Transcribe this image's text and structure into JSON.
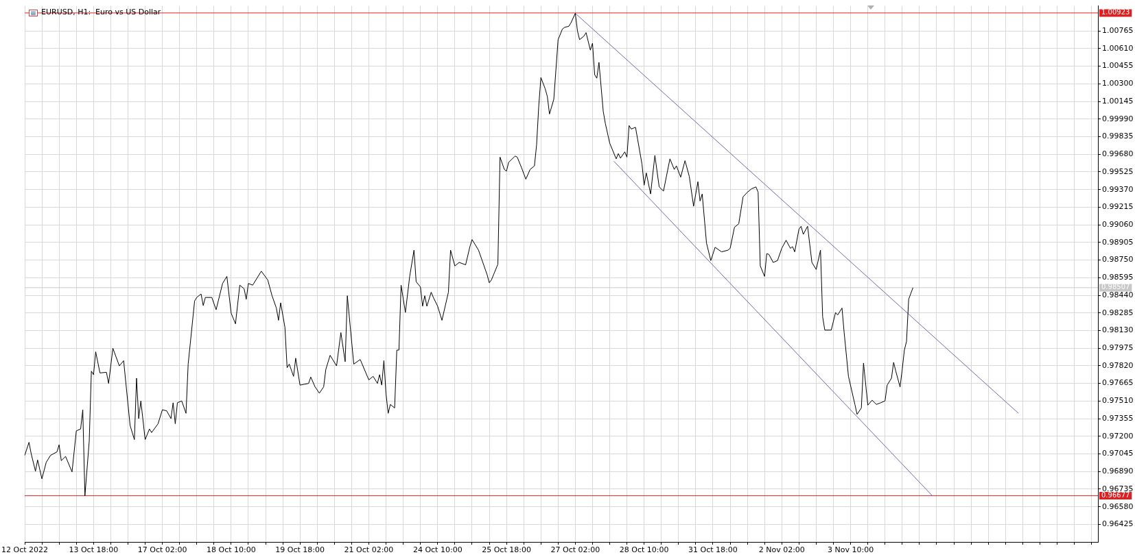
{
  "chart_data": {
    "type": "line",
    "title": "EURUSD, H1:  Euro vs US Dollar",
    "marker": "none",
    "grid": true,
    "ylim": [
      0.96271,
      1.00985
    ],
    "categories": [
      "12 Oct 2022",
      null,
      null,
      null,
      null,
      null,
      null,
      null,
      null,
      null,
      null,
      null,
      null,
      null,
      null,
      null,
      null,
      null,
      null,
      null,
      null,
      null,
      null,
      null,
      null,
      null,
      null,
      null,
      null,
      null,
      null,
      null,
      "13 Oct 18:00",
      null,
      null,
      null,
      null,
      null,
      null,
      null,
      null,
      null,
      null,
      null,
      null,
      null,
      null,
      null,
      null,
      null,
      null,
      null,
      null,
      null,
      null,
      null,
      null,
      null,
      null,
      null,
      null,
      null,
      null,
      null,
      "17 Oct 02:00",
      null,
      null,
      null,
      null,
      null,
      null,
      null,
      null,
      null,
      null,
      null,
      null,
      null,
      null,
      null,
      null,
      null,
      null,
      null,
      null,
      null,
      null,
      null,
      null,
      null,
      null,
      null,
      null,
      null,
      null,
      null,
      "18 Oct 10:00",
      null,
      null,
      null,
      null,
      null,
      null,
      null,
      null,
      null,
      null,
      null,
      null,
      null,
      null,
      null,
      null,
      null,
      null,
      null,
      null,
      null,
      null,
      null,
      null,
      null,
      null,
      null,
      null,
      null,
      null,
      null,
      "19 Oct 18:00",
      null,
      null,
      null,
      null,
      null,
      null,
      null,
      null,
      null,
      null,
      null,
      null,
      null,
      null,
      null,
      null,
      null,
      null,
      null,
      null,
      null,
      null,
      null,
      null,
      null,
      null,
      null,
      null,
      null,
      null,
      null,
      "21 Oct 02:00",
      null,
      null,
      null,
      null,
      null,
      null,
      null,
      null,
      null,
      null,
      null,
      null,
      null,
      null,
      null,
      null,
      null,
      null,
      null,
      null,
      null,
      null,
      null,
      null,
      null,
      null,
      null,
      null,
      null,
      null,
      null,
      "24 Oct 10:00",
      null,
      null,
      null,
      null,
      null,
      null,
      null,
      null,
      null,
      null,
      null,
      null,
      null,
      null,
      null,
      null,
      null,
      null,
      null,
      null,
      null,
      null,
      null,
      null,
      null,
      null,
      null,
      null,
      null,
      null,
      null,
      "25 Oct 18:00",
      null,
      null,
      null,
      null,
      null,
      null,
      null,
      null,
      null,
      null,
      null,
      null,
      null,
      null,
      null,
      null,
      null,
      null,
      null,
      null,
      null,
      null,
      null,
      null,
      null,
      null,
      null,
      null,
      null,
      null,
      null,
      "27 Oct 02:00",
      null,
      null,
      null,
      null,
      null,
      null,
      null,
      null,
      null,
      null,
      null,
      null,
      null,
      null,
      null,
      null,
      null,
      null,
      null,
      null,
      null,
      null,
      null,
      null,
      null,
      null,
      null,
      null,
      null,
      null,
      null,
      "28 Oct 10:00",
      null,
      null,
      null,
      null,
      null,
      null,
      null,
      null,
      null,
      null,
      null,
      null,
      null,
      null,
      null,
      null,
      null,
      null,
      null,
      null,
      null,
      null,
      null,
      null,
      null,
      null,
      null,
      null,
      null,
      null,
      null,
      "31 Oct 18:00",
      null,
      null,
      null,
      null,
      null,
      null,
      null,
      null,
      null,
      null,
      null,
      null,
      null,
      null,
      null,
      null,
      null,
      null,
      null,
      null,
      null,
      null,
      null,
      null,
      null,
      null,
      null,
      null,
      null,
      null,
      null,
      "2 Nov 02:00",
      null,
      null,
      null,
      null,
      null,
      null,
      null,
      null,
      null,
      null,
      null,
      null,
      null,
      null,
      null,
      null,
      null,
      null,
      null,
      null,
      null,
      null,
      null,
      null,
      null,
      null,
      null,
      null,
      null,
      null,
      null,
      "3 Nov 10:00",
      null,
      null,
      null,
      null,
      null,
      null,
      null,
      null,
      null,
      null,
      null,
      null,
      null,
      null,
      null,
      null,
      null,
      null,
      null,
      null,
      null,
      null,
      null,
      null,
      null,
      null,
      null,
      null,
      null,
      null,
      null,
      null,
      null,
      null,
      null,
      null,
      null,
      null,
      null,
      null,
      null,
      null,
      null,
      null,
      null,
      null,
      null,
      null,
      null,
      null,
      null,
      null,
      null,
      null,
      null,
      null,
      null,
      null,
      null,
      null,
      null,
      null,
      null,
      null,
      null,
      null,
      null,
      null,
      null,
      null,
      null,
      null,
      null,
      null,
      null,
      null,
      null,
      null,
      null,
      null,
      null,
      null,
      null,
      null,
      null,
      null,
      null,
      null,
      null,
      null,
      null,
      null,
      null,
      null,
      null,
      null,
      null,
      null,
      null,
      null,
      null,
      null,
      null,
      null,
      null,
      null,
      null,
      null,
      null,
      null,
      null,
      null,
      null,
      null,
      null
    ],
    "yticks": [
      {
        "value": 0.96425,
        "label": "0.96425"
      },
      {
        "value": 0.9658,
        "label": "0.96580"
      },
      {
        "value": 0.96735,
        "label": "0.96735"
      },
      {
        "value": 0.9689,
        "label": "0.96890"
      },
      {
        "value": 0.97045,
        "label": "0.97045"
      },
      {
        "value": 0.972,
        "label": "0.97200"
      },
      {
        "value": 0.97355,
        "label": "0.97355"
      },
      {
        "value": 0.9751,
        "label": "0.97510"
      },
      {
        "value": 0.97665,
        "label": "0.97665"
      },
      {
        "value": 0.9782,
        "label": "0.97820"
      },
      {
        "value": 0.97975,
        "label": "0.97975"
      },
      {
        "value": 0.9813,
        "label": "0.98130"
      },
      {
        "value": 0.98285,
        "label": "0.98285"
      },
      {
        "value": 0.9844,
        "label": "0.98440"
      },
      {
        "value": 0.98595,
        "label": "0.98595"
      },
      {
        "value": 0.9875,
        "label": "0.98750"
      },
      {
        "value": 0.98905,
        "label": "0.98905"
      },
      {
        "value": 0.9906,
        "label": "0.99060"
      },
      {
        "value": 0.99215,
        "label": "0.99215"
      },
      {
        "value": 0.9937,
        "label": "0.99370"
      },
      {
        "value": 0.99525,
        "label": "0.99525"
      },
      {
        "value": 0.9968,
        "label": "0.99680"
      },
      {
        "value": 0.99835,
        "label": "0.99835"
      },
      {
        "value": 0.9999,
        "label": "0.99990"
      },
      {
        "value": 1.00145,
        "label": "1.00145"
      },
      {
        "value": 1.003,
        "label": "1.00300"
      },
      {
        "value": 1.00455,
        "label": "1.00455"
      },
      {
        "value": 1.0061,
        "label": "1.00610"
      },
      {
        "value": 1.00765,
        "label": "1.00765"
      }
    ],
    "ref_lines": [
      {
        "axis": "y",
        "value": 1.00923,
        "label": "1.00923",
        "color": "#e02020"
      },
      {
        "axis": "y",
        "value": 0.96677,
        "label": "0.96677",
        "color": "#e02020"
      },
      {
        "axis": "y",
        "value": 0.98507,
        "label": "0.98507",
        "color": "#c8c8c8"
      }
    ],
    "series": [
      {
        "color": "#000000",
        "values": [
          0.97032,
          null,
          0.97147,
          0.97048,
          null,
          0.96893,
          0.96992,
          null,
          0.96826,
          null,
          0.96971,
          null,
          0.97032,
          null,
          null,
          0.97063,
          0.97125,
          0.96986,
          null,
          0.97023,
          null,
          null,
          0.96887,
          null,
          0.97248,
          null,
          0.97264,
          0.97433,
          0.96677,
          null,
          0.97156,
          0.97773,
          0.97742,
          0.97943,
          null,
          0.97757,
          null,
          null,
          0.97763,
          0.97665,
          null,
          0.97974,
          null,
          null,
          0.97819,
          null,
          0.97865,
          null,
          null,
          0.97295,
          null,
          0.97171,
          0.97711,
          0.97356,
          0.97511,
          null,
          0.97171,
          null,
          0.97264,
          0.97233,
          null,
          null,
          0.9731,
          null,
          0.97433,
          null,
          0.97424,
          null,
          0.97356,
          0.97495,
          0.9731,
          0.97495,
          null,
          0.97511,
          null,
          0.97402,
          0.97835,
          null,
          null,
          0.9839,
          0.98421,
          null,
          0.98452,
          0.9835,
          0.98421,
          null,
          null,
          0.98421,
          null,
          0.98313,
          null,
          null,
          0.98544,
          null,
          0.98606,
          null,
          0.98282,
          null,
          0.98189,
          null,
          0.98529,
          null,
          0.98498,
          0.98405,
          0.98544,
          null,
          0.98529,
          null,
          null,
          null,
          0.98652,
          null,
          null,
          0.98575,
          null,
          0.98436,
          null,
          0.98328,
          0.9822,
          0.98374,
          null,
          0.98158,
          0.97803,
          0.97835,
          null,
          0.97727,
          0.97887,
          null,
          0.9765,
          null,
          null,
          null,
          0.97665,
          0.97721,
          null,
          0.97635,
          null,
          0.97579,
          null,
          0.97635,
          0.97788,
          null,
          0.97912,
          null,
          null,
          0.97819,
          null,
          0.98112,
          null,
          0.97856,
          0.98436,
          null,
          null,
          0.97835,
          null,
          null,
          0.97875,
          null,
          null,
          null,
          0.97696,
          null,
          0.97727,
          null,
          0.97665,
          0.97742,
          0.9765,
          0.97865,
          0.97572,
          0.97402,
          0.9748,
          null,
          0.97449,
          0.97958,
          0.97958,
          0.98529,
          null,
          0.98289,
          null,
          0.98606,
          null,
          0.98837,
          0.98559,
          null,
          0.98513,
          0.98344,
          0.98436,
          0.98344,
          null,
          0.98467,
          0.98421,
          null,
          0.98344,
          null,
          0.9822,
          null,
          null,
          0.98467,
          0.98837,
          null,
          0.98698,
          null,
          0.98729,
          null,
          null,
          0.98708,
          null,
          0.98868,
          0.9893,
          null,
          null,
          0.98837,
          null,
          null,
          null,
          0.98621,
          0.9855,
          0.98575,
          0.98621,
          null,
          0.98714,
          0.99655,
          null,
          0.99547,
          0.99532,
          0.99609,
          null,
          null,
          0.99664,
          0.99655,
          null,
          0.99562,
          null,
          0.99461,
          null,
          0.99547,
          null,
          0.99578,
          0.99763,
          1.00102,
          1.00355,
          null,
          1.00256,
          1.00188,
          1.00034,
          null,
          1.00163,
          null,
          1.00688,
          null,
          1.00781,
          1.00796,
          null,
          1.00806,
          1.00837,
          null,
          1.0092,
          1.00765,
          1.00688,
          null,
          1.00719,
          1.0075,
          null,
          1.00596,
          1.00657,
          1.0038,
          1.00349,
          1.00488,
          null,
          1.00056,
          0.99948,
          null,
          0.99778,
          null,
          null,
          0.9964,
          0.99686,
          0.99646,
          null,
          0.99701,
          0.99655,
          0.99933,
          0.99902,
          null,
          0.99917,
          0.99809,
          null,
          0.99593,
          0.99408,
          0.99516,
          null,
          0.99331,
          null,
          0.9967,
          null,
          0.99393,
          null,
          0.99356,
          null,
          null,
          0.9964,
          null,
          0.99547,
          0.99578,
          null,
          0.99479,
          null,
          0.99624,
          null,
          0.99485,
          null,
          0.99223,
          null,
          0.99439,
          0.99269,
          0.99331,
          null,
          0.98899,
          null,
          0.98745,
          null,
          0.98862,
          null,
          null,
          0.98822,
          null,
          null,
          0.98837,
          0.98853,
          null,
          0.99038,
          null,
          0.99069,
          null,
          0.99306,
          null,
          0.99346,
          null,
          0.99377,
          null,
          0.99393,
          0.99346,
          0.98698,
          null,
          0.98606,
          0.98806,
          0.988,
          null,
          0.98729,
          null,
          0.98745,
          null,
          0.98853,
          null,
          0.98924,
          null,
          0.98853,
          0.98868,
          0.98822,
          null,
          0.99022,
          0.99047,
          0.98976,
          null,
          0.99047,
          null,
          0.98729,
          null,
          0.98667,
          null,
          0.98837,
          0.98251,
          0.98134,
          null,
          null,
          0.98134,
          null,
          0.98288,
          0.98267,
          null,
          0.98328,
          0.98112,
          null,
          0.97727,
          null,
          null,
          0.9748,
          0.97393,
          null,
          0.97449,
          0.97844,
          null,
          0.97474,
          null,
          0.97517,
          null,
          0.9748,
          null,
          0.97495,
          null,
          0.97511,
          0.9765,
          null,
          0.97711,
          0.9785,
          0.97773,
          null,
          0.97634,
          0.97788,
          0.97958,
          0.98035,
          0.98405,
          null,
          0.98507,
          null,
          null,
          null,
          null,
          null,
          null,
          null,
          null,
          null,
          null,
          null,
          null,
          null,
          null,
          null,
          null,
          null,
          null,
          null,
          null,
          null,
          null,
          null,
          null,
          null,
          null,
          null,
          null,
          null,
          null,
          null,
          null,
          null,
          null,
          null,
          null,
          null,
          null,
          null,
          null,
          null,
          null,
          null,
          null,
          null,
          null,
          null,
          null,
          null,
          null,
          null,
          null,
          null,
          null,
          null,
          null,
          null,
          null,
          null,
          null,
          null,
          null,
          null,
          null,
          null,
          null,
          null,
          null,
          null,
          null,
          null,
          null,
          null,
          null,
          null,
          null,
          null,
          null,
          null,
          null,
          null,
          null,
          null,
          null,
          null,
          null
        ]
      },
      {
        "color": "#6a6aae",
        "values": [
          null,
          null,
          null,
          null,
          null,
          null,
          null,
          null,
          null,
          null,
          null,
          null,
          null,
          null,
          null,
          null,
          null,
          null,
          null,
          null,
          null,
          null,
          null,
          null,
          null,
          null,
          null,
          null,
          null,
          null,
          null,
          null,
          null,
          null,
          null,
          null,
          null,
          null,
          null,
          null,
          null,
          null,
          null,
          null,
          null,
          null,
          null,
          null,
          null,
          null,
          null,
          null,
          null,
          null,
          null,
          null,
          null,
          null,
          null,
          null,
          null,
          null,
          null,
          null,
          null,
          null,
          null,
          null,
          null,
          null,
          null,
          null,
          null,
          null,
          null,
          null,
          null,
          null,
          null,
          null,
          null,
          null,
          null,
          null,
          null,
          null,
          null,
          null,
          null,
          null,
          null,
          null,
          null,
          null,
          null,
          null,
          null,
          null,
          null,
          null,
          null,
          null,
          null,
          null,
          null,
          null,
          null,
          null,
          null,
          null,
          null,
          null,
          null,
          null,
          null,
          null,
          null,
          null,
          null,
          null,
          null,
          null,
          null,
          null,
          null,
          null,
          null,
          null,
          null,
          null,
          null,
          null,
          null,
          null,
          null,
          null,
          null,
          null,
          null,
          null,
          null,
          null,
          null,
          null,
          null,
          null,
          null,
          null,
          null,
          null,
          null,
          null,
          null,
          null,
          null,
          null,
          null,
          null,
          null,
          null,
          null,
          null,
          null,
          null,
          null,
          null,
          null,
          null,
          null,
          null,
          null,
          null,
          null,
          null,
          null,
          null,
          null,
          null,
          null,
          null,
          null,
          null,
          null,
          null,
          null,
          null,
          null,
          null,
          null,
          null,
          null,
          null,
          null,
          null,
          null,
          null,
          null,
          null,
          null,
          null,
          null,
          null,
          null,
          null,
          null,
          null,
          null,
          null,
          null,
          null,
          null,
          null,
          null,
          null,
          null,
          null,
          null,
          null,
          null,
          null,
          null,
          null,
          null,
          null,
          null,
          null,
          null,
          null,
          null,
          null,
          null,
          null,
          null,
          null,
          null,
          null,
          null,
          null,
          null,
          null,
          null,
          null,
          null,
          null,
          null,
          null,
          null,
          null,
          null,
          null,
          null,
          null,
          null,
          null,
          null,
          null,
          1.0092,
          null,
          null,
          null,
          null,
          null,
          null,
          null,
          null,
          null,
          null,
          null,
          null,
          null,
          null,
          null,
          null,
          null,
          null,
          null,
          null,
          null,
          null,
          null,
          null,
          null,
          null,
          null,
          null,
          null,
          null,
          null,
          null,
          null,
          null,
          null,
          null,
          null,
          null,
          null,
          null,
          null,
          null,
          null,
          null,
          null,
          null,
          null,
          null,
          null,
          null,
          null,
          null,
          null,
          null,
          null,
          null,
          null,
          null,
          null,
          null,
          null,
          null,
          null,
          null,
          null,
          null,
          null,
          null,
          null,
          null,
          null,
          null,
          null,
          null,
          null,
          null,
          null,
          null,
          null,
          null,
          null,
          null,
          null,
          null,
          null,
          null,
          null,
          null,
          null,
          null,
          null,
          null,
          null,
          null,
          null,
          null,
          null,
          null,
          null,
          null,
          null,
          null,
          null,
          null,
          null,
          null,
          null,
          null,
          null,
          null,
          null,
          null,
          null,
          null,
          null,
          null,
          null,
          null,
          null,
          null,
          null,
          null,
          null,
          null,
          null,
          null,
          null,
          null,
          null,
          null,
          null,
          null,
          null,
          null,
          null,
          null,
          null,
          null,
          null,
          null,
          null,
          null,
          null,
          null,
          null,
          null,
          null,
          null,
          null,
          null,
          null,
          null,
          null,
          null,
          null,
          null,
          null,
          null,
          null,
          null,
          null,
          null,
          null,
          null,
          null,
          null,
          null,
          null,
          null,
          null,
          null,
          null,
          null,
          null,
          null,
          null,
          null,
          null,
          null,
          null,
          null,
          null,
          null,
          null,
          null,
          null,
          null,
          null,
          null,
          null,
          null,
          null,
          null,
          null,
          null,
          null,
          null,
          null,
          null,
          null,
          null,
          null,
          null,
          null,
          null,
          0.97403,
          null,
          null,
          null,
          null,
          null,
          null,
          null,
          null,
          null,
          null,
          null,
          null,
          null,
          null,
          null,
          null,
          null,
          null,
          null,
          null,
          null,
          null,
          null,
          null,
          null,
          null,
          null,
          null,
          null,
          null,
          null,
          null,
          null,
          null,
          null,
          null,
          null
        ]
      },
      {
        "color": "#6a6aae",
        "values": [
          null,
          null,
          null,
          null,
          null,
          null,
          null,
          null,
          null,
          null,
          null,
          null,
          null,
          null,
          null,
          null,
          null,
          null,
          null,
          null,
          null,
          null,
          null,
          null,
          null,
          null,
          null,
          null,
          null,
          null,
          null,
          null,
          null,
          null,
          null,
          null,
          null,
          null,
          null,
          null,
          null,
          null,
          null,
          null,
          null,
          null,
          null,
          null,
          null,
          null,
          null,
          null,
          null,
          null,
          null,
          null,
          null,
          null,
          null,
          null,
          null,
          null,
          null,
          null,
          null,
          null,
          null,
          null,
          null,
          null,
          null,
          null,
          null,
          null,
          null,
          null,
          null,
          null,
          null,
          null,
          null,
          null,
          null,
          null,
          null,
          null,
          null,
          null,
          null,
          null,
          null,
          null,
          null,
          null,
          null,
          null,
          null,
          null,
          null,
          null,
          null,
          null,
          null,
          null,
          null,
          null,
          null,
          null,
          null,
          null,
          null,
          null,
          null,
          null,
          null,
          null,
          null,
          null,
          null,
          null,
          null,
          null,
          null,
          null,
          null,
          null,
          null,
          null,
          null,
          null,
          null,
          null,
          null,
          null,
          null,
          null,
          null,
          null,
          null,
          null,
          null,
          null,
          null,
          null,
          null,
          null,
          null,
          null,
          null,
          null,
          null,
          null,
          null,
          null,
          null,
          null,
          null,
          null,
          null,
          null,
          null,
          null,
          null,
          null,
          null,
          null,
          null,
          null,
          null,
          null,
          null,
          null,
          null,
          null,
          null,
          null,
          null,
          null,
          null,
          null,
          null,
          null,
          null,
          null,
          null,
          null,
          null,
          null,
          null,
          null,
          null,
          null,
          null,
          null,
          null,
          null,
          null,
          null,
          null,
          null,
          null,
          null,
          null,
          null,
          null,
          null,
          null,
          null,
          null,
          null,
          null,
          null,
          null,
          null,
          null,
          null,
          null,
          null,
          null,
          null,
          null,
          null,
          null,
          null,
          null,
          null,
          null,
          null,
          null,
          null,
          null,
          null,
          null,
          null,
          null,
          null,
          null,
          null,
          null,
          null,
          null,
          null,
          null,
          null,
          null,
          null,
          null,
          null,
          null,
          null,
          null,
          null,
          null,
          null,
          null,
          null,
          null,
          null,
          null,
          null,
          null,
          null,
          null,
          null,
          null,
          null,
          null,
          null,
          null,
          null,
          null,
          null,
          null,
          null,
          0.99618,
          null,
          null,
          null,
          null,
          null,
          null,
          null,
          null,
          null,
          null,
          null,
          null,
          null,
          null,
          null,
          null,
          null,
          null,
          null,
          null,
          null,
          null,
          null,
          null,
          null,
          null,
          null,
          null,
          null,
          null,
          null,
          null,
          null,
          null,
          null,
          null,
          null,
          null,
          null,
          null,
          null,
          null,
          null,
          null,
          null,
          null,
          null,
          null,
          null,
          null,
          null,
          null,
          null,
          null,
          null,
          null,
          null,
          null,
          null,
          null,
          null,
          null,
          null,
          null,
          null,
          null,
          null,
          null,
          null,
          null,
          null,
          null,
          null,
          null,
          null,
          null,
          null,
          null,
          null,
          null,
          null,
          null,
          null,
          null,
          null,
          null,
          null,
          null,
          null,
          null,
          null,
          null,
          null,
          null,
          null,
          null,
          null,
          null,
          null,
          null,
          null,
          null,
          null,
          null,
          null,
          null,
          null,
          null,
          null,
          null,
          null,
          null,
          null,
          null,
          null,
          null,
          null,
          null,
          null,
          null,
          null,
          null,
          null,
          null,
          null,
          null,
          null,
          null,
          null,
          null,
          null,
          null,
          null,
          null,
          null,
          null,
          null,
          null,
          null,
          null,
          null,
          null,
          null,
          null,
          null,
          null,
          null,
          0.96677,
          null,
          null,
          null,
          null,
          null,
          null,
          null,
          null,
          null,
          null,
          null,
          null,
          null,
          null,
          null,
          null,
          null,
          null,
          null,
          null,
          null,
          null,
          null,
          null,
          null,
          null,
          null,
          null,
          null,
          null,
          null,
          null,
          null,
          null,
          null,
          null,
          null,
          null,
          null,
          null,
          null,
          null,
          null,
          null,
          null,
          null,
          null,
          null,
          null,
          null,
          null,
          null,
          null,
          null,
          null,
          null,
          null,
          null,
          null,
          null,
          null,
          null,
          null,
          null,
          null,
          null,
          null,
          null,
          null,
          null,
          null,
          null,
          null,
          null,
          null,
          null,
          null
        ]
      }
    ]
  }
}
